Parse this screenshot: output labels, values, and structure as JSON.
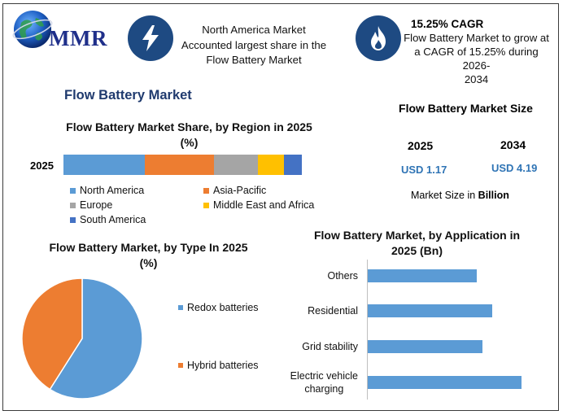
{
  "header": {
    "logo_text": "MMR",
    "north_america_text": [
      "North America Market",
      "Accounted largest share in the",
      "Flow Battery Market"
    ],
    "cagr_title": "15.25% CAGR",
    "cagr_text": [
      "Flow Battery Market to grow at",
      "a CAGR of 15.25% during 2026-",
      "2034"
    ]
  },
  "main_title": "Flow Battery Market",
  "market_size": {
    "title": "Flow Battery Market Size",
    "years": [
      "2025",
      "2034"
    ],
    "values": [
      "USD 1.17",
      "USD 4.19"
    ],
    "unit_note_prefix": "Market Size in ",
    "unit_note_bold": "Billion"
  },
  "colors": {
    "blue": "#5b9bd5",
    "orange": "#ed7d31",
    "gray": "#a5a5a5",
    "yellow": "#ffc000",
    "dark_blue": "#4472c4",
    "icon_bg": "#1e4a82",
    "title_blue": "#1f3a6e"
  },
  "chart_data": [
    {
      "type": "bar",
      "orientation": "horizontal-stacked",
      "title": "Flow Battery Market Share, by Region in 2025 (%)",
      "title_lines": [
        "Flow Battery Market Share, by Region in 2025",
        "(%)"
      ],
      "categories": [
        "2025"
      ],
      "series": [
        {
          "name": "North America",
          "values": [
            34
          ],
          "color": "#5b9bd5"
        },
        {
          "name": "Asia-Pacific",
          "values": [
            29
          ],
          "color": "#ed7d31"
        },
        {
          "name": "Europe",
          "values": [
            18.5
          ],
          "color": "#a5a5a5"
        },
        {
          "name": "Middle East and Africa",
          "values": [
            11
          ],
          "color": "#ffc000"
        },
        {
          "name": "South America",
          "values": [
            7.5
          ],
          "color": "#4472c4"
        }
      ],
      "xlim": [
        0,
        100
      ],
      "legend_position": "bottom"
    },
    {
      "type": "pie",
      "title": "Flow Battery Market, by Type In 2025 (%)",
      "title_lines": [
        "Flow Battery Market, by Type In 2025",
        "(%)"
      ],
      "labels": [
        "Redox batteries",
        "Hybrid batteries"
      ],
      "values": [
        59,
        41
      ],
      "colors": [
        "#5b9bd5",
        "#ed7d31"
      ],
      "legend_position": "right"
    },
    {
      "type": "bar",
      "orientation": "horizontal",
      "title": "Flow Battery Market, by Application in 2025 (Bn)",
      "title_lines": [
        "Flow Battery Market, by Application in",
        "2025 (Bn)"
      ],
      "categories": [
        "Others",
        "Residential",
        "Grid stability",
        "Electric vehicle charging"
      ],
      "category_lines": [
        [
          "Others"
        ],
        [
          "Residential"
        ],
        [
          "Grid stability"
        ],
        [
          "Electric vehicle",
          "charging"
        ]
      ],
      "values": [
        0.22,
        0.25,
        0.23,
        0.31
      ],
      "xlim": [
        0,
        0.36
      ],
      "color": "#5b9bd5",
      "grid": false
    }
  ]
}
